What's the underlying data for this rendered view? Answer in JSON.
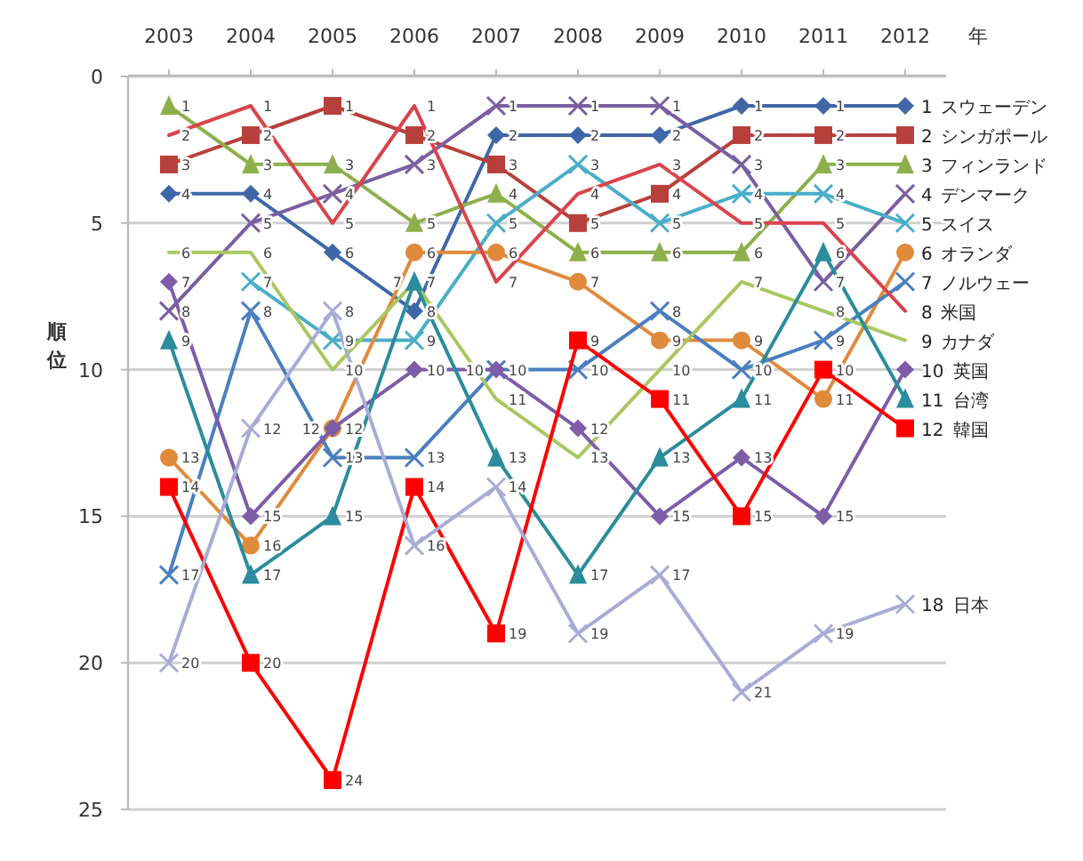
{
  "chart_data": {
    "type": "line",
    "xlabel": "年",
    "ylabel": "順位",
    "categories": [
      "2003",
      "2004",
      "2005",
      "2006",
      "2007",
      "2008",
      "2009",
      "2010",
      "2011",
      "2012"
    ],
    "ylim": [
      25,
      0
    ],
    "yticks": [
      0,
      5,
      10,
      15,
      20,
      25
    ],
    "grid": "y",
    "data_labels": true,
    "series": [
      {
        "name": "スウェーデン",
        "color": "#3f67a8",
        "marker": "diamond",
        "values": [
          4,
          4,
          6,
          8,
          2,
          2,
          2,
          1,
          1,
          1
        ]
      },
      {
        "name": "シンガポール",
        "color": "#b8403c",
        "marker": "square",
        "values": [
          3,
          2,
          1,
          2,
          3,
          5,
          4,
          2,
          2,
          2
        ]
      },
      {
        "name": "フィンランド",
        "color": "#8db04c",
        "marker": "triangle",
        "values": [
          1,
          3,
          3,
          5,
          4,
          6,
          6,
          6,
          3,
          3
        ]
      },
      {
        "name": "デンマーク",
        "color": "#7a5fa0",
        "marker": "cross",
        "values": [
          8,
          5,
          4,
          3,
          1,
          1,
          1,
          3,
          7,
          4
        ]
      },
      {
        "name": "スイス",
        "color": "#4aaec8",
        "marker": "cross",
        "values": [
          null,
          7,
          9,
          9,
          5,
          3,
          5,
          4,
          4,
          5
        ]
      },
      {
        "name": "オランダ",
        "color": "#e08a3c",
        "marker": "circle",
        "values": [
          13,
          16,
          12,
          6,
          6,
          7,
          9,
          9,
          11,
          6
        ]
      },
      {
        "name": "ノルウェー",
        "color": "#4a7fc0",
        "marker": "cross",
        "values": [
          17,
          8,
          13,
          13,
          10,
          10,
          8,
          10,
          9,
          7
        ]
      },
      {
        "name": "米国",
        "color": "#d9444c",
        "marker": "none",
        "values": [
          2,
          1,
          5,
          1,
          7,
          4,
          3,
          5,
          5,
          8
        ]
      },
      {
        "name": "カナダ",
        "color": "#a8c860",
        "marker": "none",
        "values": [
          6,
          6,
          10,
          7,
          11,
          13,
          10,
          7,
          8,
          9
        ]
      },
      {
        "name": "英国",
        "color": "#7d5ca8",
        "marker": "diamond",
        "values": [
          7,
          15,
          12,
          10,
          10,
          12,
          15,
          13,
          15,
          10
        ]
      },
      {
        "name": "台湾",
        "color": "#2a8c9c",
        "marker": "triangle",
        "values": [
          9,
          17,
          15,
          7,
          13,
          17,
          13,
          11,
          6,
          11
        ]
      },
      {
        "name": "韓国",
        "color": "#ff0000",
        "marker": "square",
        "values": [
          14,
          20,
          24,
          14,
          19,
          9,
          11,
          15,
          10,
          12
        ]
      },
      {
        "name": "日本",
        "color": "#a8acd6",
        "marker": "cross",
        "values": [
          20,
          12,
          8,
          16,
          14,
          19,
          17,
          21,
          19,
          18
        ]
      }
    ]
  }
}
